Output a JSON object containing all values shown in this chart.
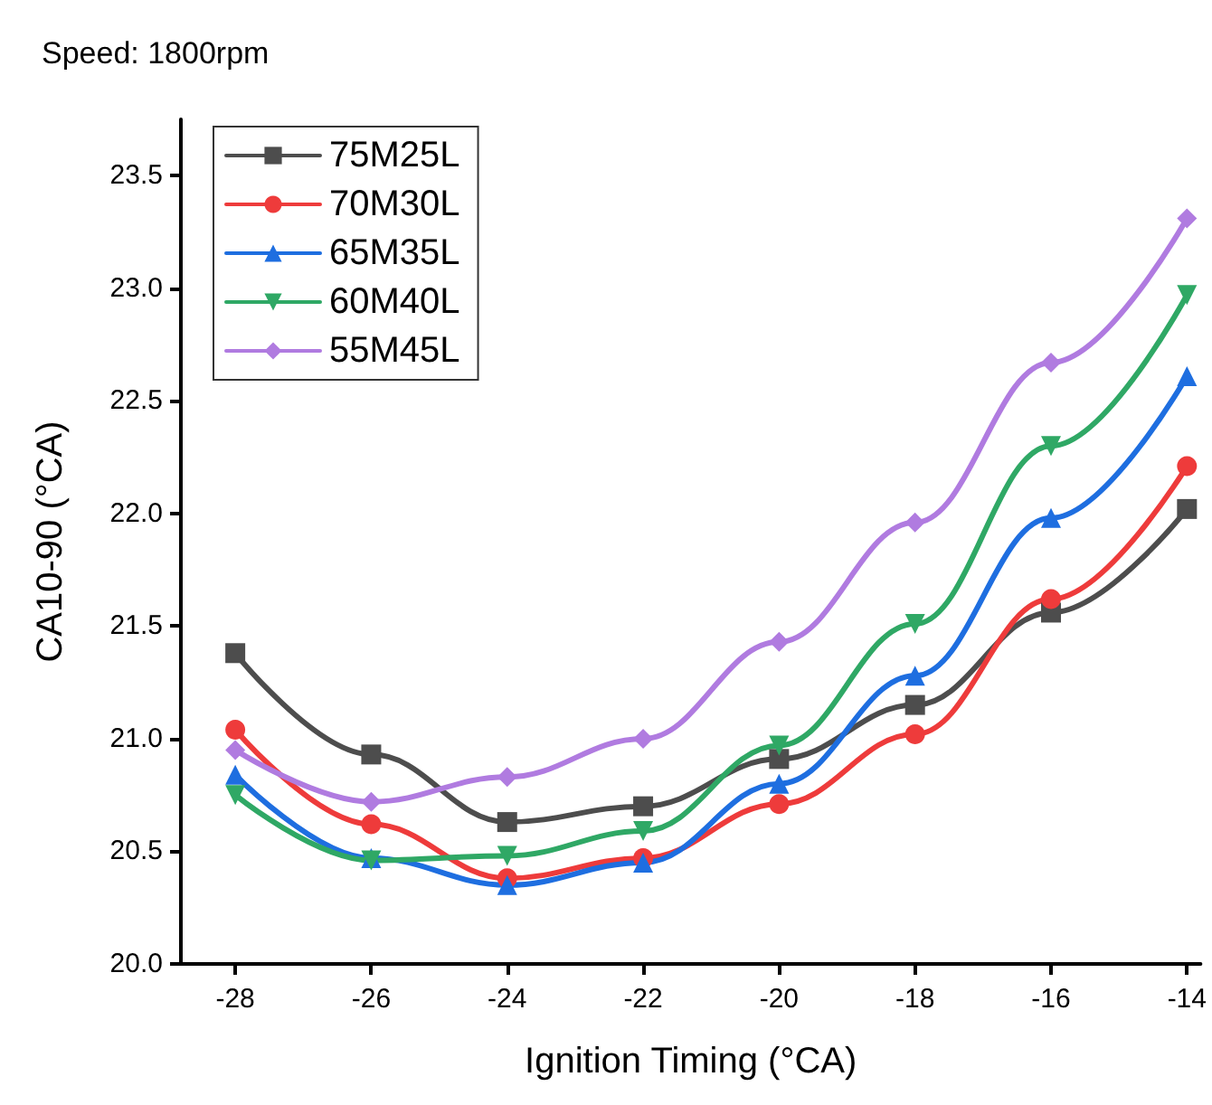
{
  "chart_data": {
    "type": "line",
    "title": "Speed: 1800rpm",
    "xlabel": "Ignition Timing (°CA)",
    "ylabel": "CA10-90 (°CA)",
    "x": [
      -28,
      -26,
      -24,
      -22,
      -20,
      -18,
      -16,
      -14
    ],
    "series": [
      {
        "name": "75M25L",
        "color": "#4d4d4d",
        "marker": "square",
        "values": [
          21.38,
          20.93,
          20.63,
          20.7,
          20.91,
          21.15,
          21.56,
          22.02
        ]
      },
      {
        "name": "70M30L",
        "color": "#ee3b3b",
        "marker": "circle",
        "values": [
          21.04,
          20.62,
          20.38,
          20.47,
          20.71,
          21.02,
          21.62,
          22.21
        ]
      },
      {
        "name": "65M35L",
        "color": "#1e6ee0",
        "marker": "triangle",
        "values": [
          20.84,
          20.47,
          20.35,
          20.45,
          20.8,
          21.28,
          21.98,
          22.61
        ]
      },
      {
        "name": "60M40L",
        "color": "#2fa865",
        "marker": "triangle-down",
        "values": [
          20.75,
          20.46,
          20.48,
          20.59,
          20.97,
          21.51,
          22.3,
          22.97
        ]
      },
      {
        "name": "55M45L",
        "color": "#b07be0",
        "marker": "diamond",
        "values": [
          20.95,
          20.72,
          20.83,
          21.0,
          21.43,
          21.96,
          22.67,
          23.31
        ]
      }
    ],
    "xlim": [
      -28.8,
      -13.8
    ],
    "xticks": [
      -28,
      -26,
      -24,
      -22,
      -20,
      -18,
      -16,
      -14
    ],
    "ylim": [
      20,
      23.75
    ],
    "yticks": [
      {
        "value": 20,
        "label": "20.0"
      },
      {
        "value": 20.5,
        "label": "20.5"
      },
      {
        "value": 21,
        "label": "21.0"
      },
      {
        "value": 21.5,
        "label": "21.5"
      },
      {
        "value": 22,
        "label": "22.0"
      },
      {
        "value": 22.5,
        "label": "22.5"
      },
      {
        "value": 23,
        "label": "23.0"
      },
      {
        "value": 23.5,
        "label": "23.5"
      }
    ],
    "grid": false,
    "legend": "top left",
    "line_style": "solid"
  }
}
